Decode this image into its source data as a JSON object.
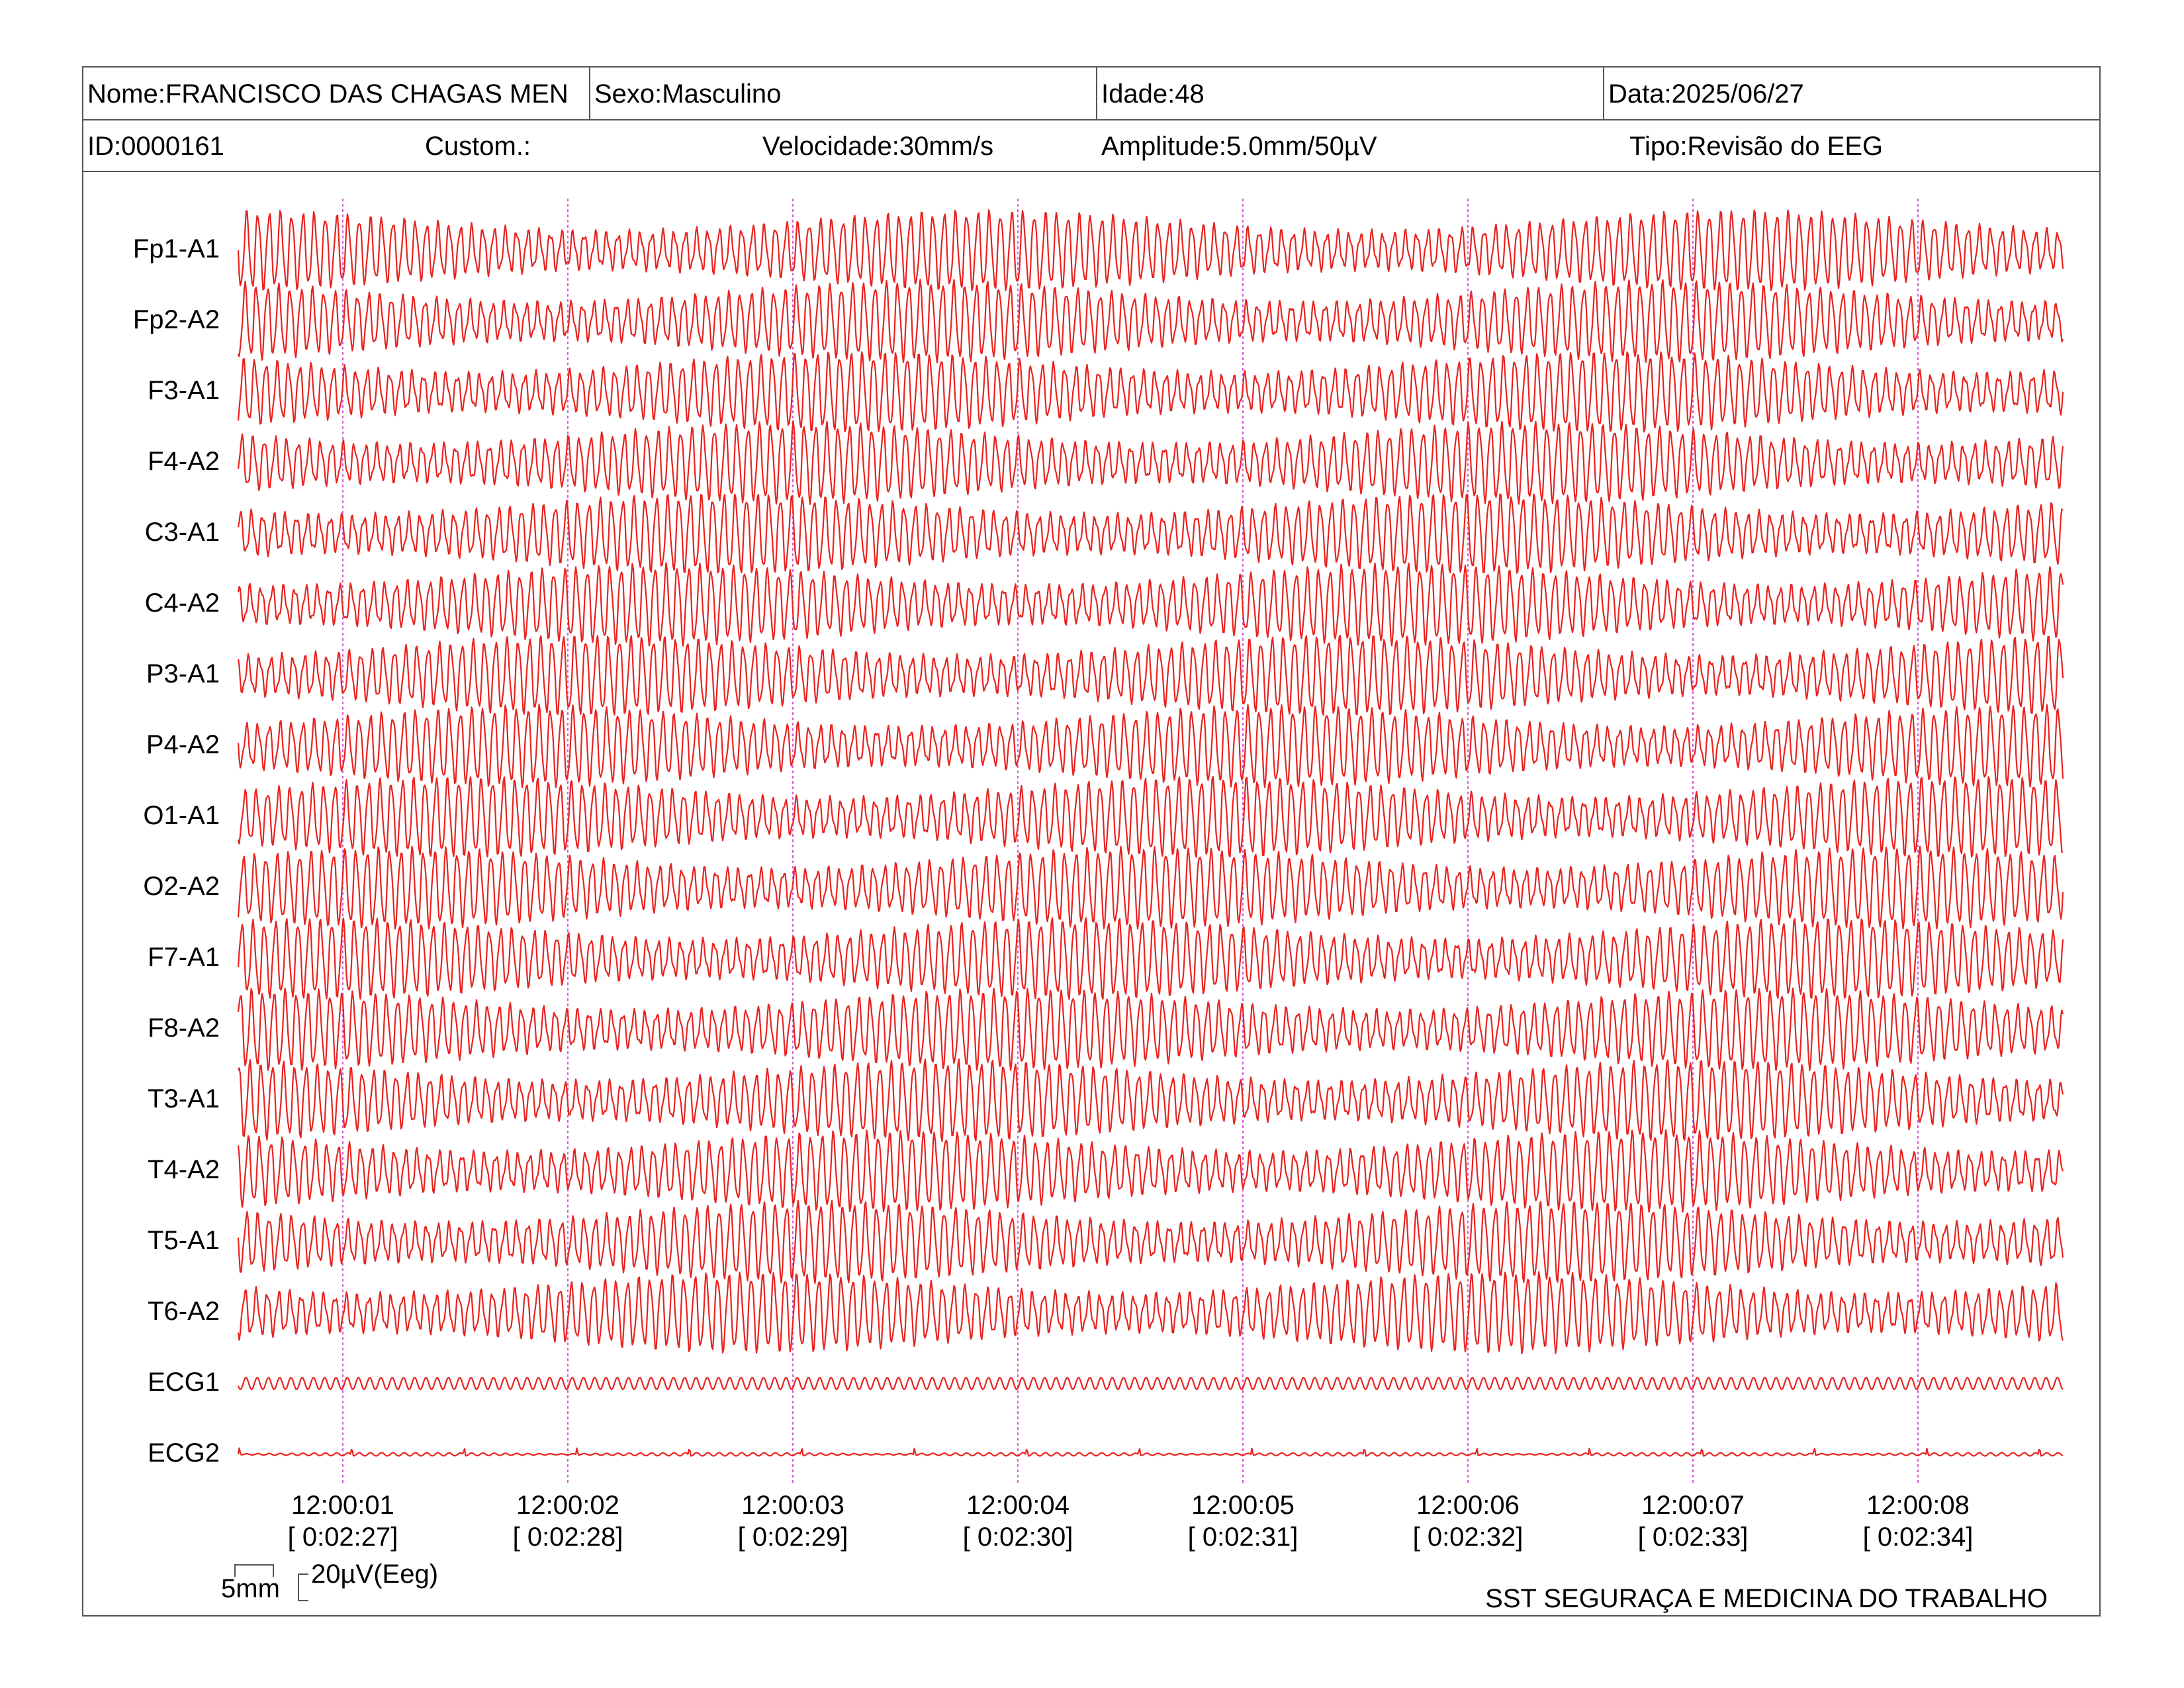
{
  "header": {
    "nome": "Nome:FRANCISCO DAS CHAGAS MEN",
    "sexo": "Sexo:Masculino",
    "idade": "Idade:48",
    "data": "Data:2025/06/27",
    "id": "ID:0000161",
    "custom": "Custom.:",
    "velocidade": "Velocidade:30mm/s",
    "amplitude": "Amplitude:5.0mm/50µV",
    "tipo": "Tipo:Revisão do EEG"
  },
  "scale": {
    "time": "5mm",
    "amplitude": "20µV(Eeg)"
  },
  "footer": "SST SEGURAÇA E MEDICINA DO TRABALHO",
  "colors": {
    "trace": "#e8231f",
    "marker": "#d65ad6",
    "border": "#555555"
  },
  "chart_data": {
    "type": "line",
    "channels": [
      "Fp1-A1",
      "Fp2-A2",
      "F3-A1",
      "F4-A2",
      "C3-A1",
      "C4-A2",
      "P3-A1",
      "P4-A2",
      "O1-A1",
      "O2-A2",
      "F7-A1",
      "F8-A2",
      "T3-A1",
      "T4-A2",
      "T5-A1",
      "T6-A2",
      "ECG1",
      "ECG2"
    ],
    "time_ticks": [
      {
        "clock": "12:00:01",
        "elapsed": "[ 0:02:27]"
      },
      {
        "clock": "12:00:02",
        "elapsed": "[ 0:02:28]"
      },
      {
        "clock": "12:00:03",
        "elapsed": "[ 0:02:29]"
      },
      {
        "clock": "12:00:04",
        "elapsed": "[ 0:02:30]"
      },
      {
        "clock": "12:00:05",
        "elapsed": "[ 0:02:31]"
      },
      {
        "clock": "12:00:06",
        "elapsed": "[ 0:02:32]"
      },
      {
        "clock": "12:00:07",
        "elapsed": "[ 0:02:33]"
      },
      {
        "clock": "12:00:08",
        "elapsed": "[ 0:02:34]"
      }
    ],
    "eeg_dominant_frequency_hz": 20,
    "seconds_shown": 8.1,
    "grid": false
  }
}
